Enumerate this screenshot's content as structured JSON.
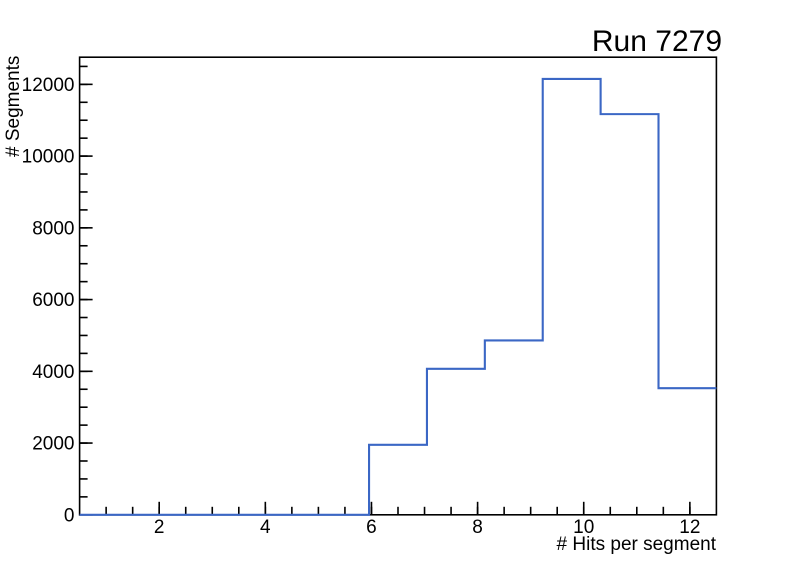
{
  "window": {
    "background_color": "#ffffff"
  },
  "chart_data": {
    "type": "histogram",
    "title": "Run 7279",
    "xlabel": "# Hits per segment",
    "ylabel": "# Segments",
    "xlim": [
      0.5,
      12.5
    ],
    "ylim": [
      0,
      12757
    ],
    "grid": false,
    "legend": null,
    "line_color": "#3b67c5",
    "axis_color": "#000000",
    "bin_edges": [
      0.5,
      1.5909,
      2.6818,
      3.7727,
      4.8636,
      5.9545,
      7.0455,
      8.1364,
      9.2273,
      10.3182,
      11.4091,
      12.5
    ],
    "counts": [
      0,
      0,
      0,
      0,
      0,
      1950,
      4070,
      4860,
      12150,
      11170,
      3530
    ],
    "x_ticks": {
      "major": [
        2,
        4,
        6,
        8,
        10,
        12
      ],
      "major_labels": [
        "2",
        "4",
        "6",
        "8",
        "10",
        "12"
      ],
      "minor_step": 0.5
    },
    "y_ticks": {
      "major": [
        0,
        2000,
        4000,
        6000,
        8000,
        10000,
        12000
      ],
      "major_labels": [
        "0",
        "2000",
        "4000",
        "6000",
        "8000",
        "10000",
        "12000"
      ],
      "minor_step": 500
    }
  }
}
